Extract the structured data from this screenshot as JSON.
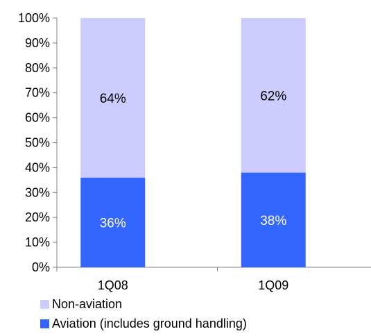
{
  "chart_data": {
    "type": "bar",
    "stacked": true,
    "categories": [
      "1Q08",
      "1Q09"
    ],
    "series": [
      {
        "name": "Aviation (includes ground handling)",
        "values": [
          36,
          38
        ],
        "labels": [
          "36%",
          "38%"
        ],
        "color": "#3366ff",
        "label_color": "#ffffff"
      },
      {
        "name": "Non-aviation",
        "values": [
          64,
          62
        ],
        "labels": [
          "64%",
          "62%"
        ],
        "color": "#ccccff",
        "label_color": "#000000"
      }
    ],
    "y_ticks": [
      "0%",
      "10%",
      "20%",
      "30%",
      "40%",
      "50%",
      "60%",
      "70%",
      "80%",
      "90%",
      "100%"
    ],
    "ylim": [
      0,
      100
    ],
    "grid": false,
    "legend_position": "bottom-left",
    "legend_order": [
      "Non-aviation",
      "Aviation (includes ground handling)"
    ]
  }
}
